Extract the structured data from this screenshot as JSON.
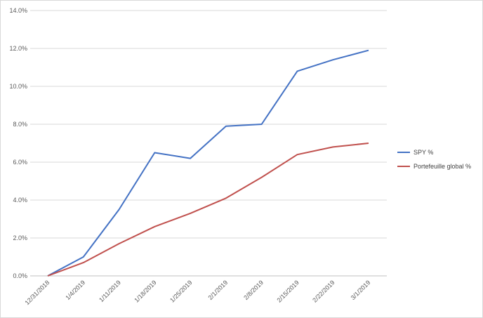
{
  "chart_data": {
    "type": "line",
    "title": "",
    "xlabel": "",
    "ylabel": "",
    "categories": [
      "12/31/2018",
      "1/4/2019",
      "1/11/2019",
      "1/18/2019",
      "1/25/2019",
      "2/1/2019",
      "2/8/2019",
      "2/15/2019",
      "2/22/2019",
      "3/1/2019"
    ],
    "y_ticks": [
      "0.0%",
      "2.0%",
      "4.0%",
      "6.0%",
      "8.0%",
      "10.0%",
      "12.0%",
      "14.0%"
    ],
    "ylim": [
      0,
      14
    ],
    "grid": "horizontal",
    "legend_position": "right",
    "series": [
      {
        "name": "SPY %",
        "color": "#4472c4",
        "values": [
          0.0,
          1.0,
          3.5,
          6.5,
          6.2,
          7.9,
          8.0,
          10.8,
          11.4,
          11.9
        ]
      },
      {
        "name": "Portefeuille global %",
        "color": "#c0504d",
        "values": [
          0.0,
          0.7,
          1.7,
          2.6,
          3.3,
          4.1,
          5.2,
          6.4,
          6.8,
          7.0
        ]
      }
    ]
  }
}
